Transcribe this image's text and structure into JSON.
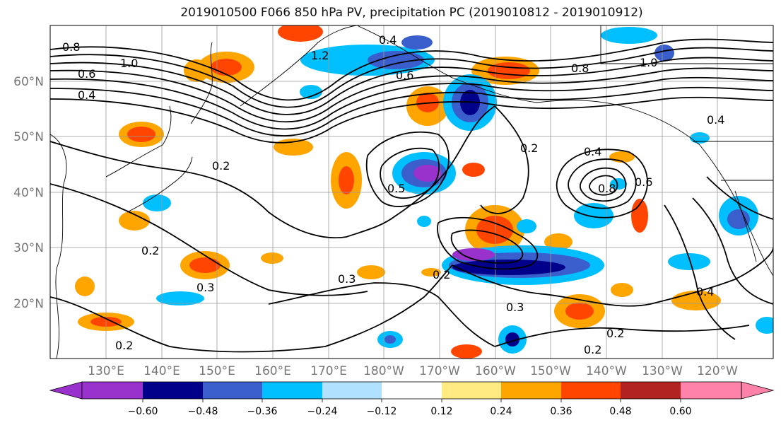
{
  "title": "2019010500 F066 850 hPa PV, precipitation PC (2019010812 - 2019010912)",
  "map": {
    "lat_labels": [
      "60°N",
      "50°N",
      "40°N",
      "30°N",
      "20°N"
    ],
    "lon_labels": [
      "130°E",
      "140°E",
      "150°E",
      "160°E",
      "170°E",
      "180°W",
      "170°W",
      "160°W",
      "150°W",
      "140°W",
      "130°W",
      "120°W"
    ],
    "contour_labels": [
      {
        "text": "0.8"
      },
      {
        "text": "1.0"
      },
      {
        "text": "0.6"
      },
      {
        "text": "0.4"
      },
      {
        "text": "0.2"
      },
      {
        "text": "0.2"
      },
      {
        "text": "0.3"
      },
      {
        "text": "0.3"
      },
      {
        "text": "0.2"
      },
      {
        "text": "0.2"
      },
      {
        "text": "0.2"
      },
      {
        "text": "0.2"
      },
      {
        "text": "0.4"
      },
      {
        "text": "0.6"
      },
      {
        "text": "0.8"
      },
      {
        "text": "0.4"
      },
      {
        "text": "0.6"
      },
      {
        "text": "0.8"
      },
      {
        "text": "1.0"
      },
      {
        "text": "1.2"
      },
      {
        "text": "0.4"
      },
      {
        "text": "0.4"
      },
      {
        "text": "0.3"
      },
      {
        "text": "0.5"
      },
      {
        "text": "0.2"
      }
    ]
  },
  "colorbar": {
    "colors": [
      "#9932cc",
      "#00008b",
      "#3a5fcd",
      "#00bfff",
      "#b0e2ff",
      "#ffffff",
      "#ffeb82",
      "#ffa500",
      "#ff4500",
      "#b22222",
      "#ff82ab"
    ],
    "tick_labels": [
      "−0.60",
      "−0.48",
      "−0.36",
      "−0.24",
      "−0.12",
      "0.12",
      "0.24",
      "0.36",
      "0.48",
      "0.60"
    ]
  },
  "colors": {
    "land_outline": "#000000",
    "grid": "#999999",
    "axis_text": "#777777"
  }
}
